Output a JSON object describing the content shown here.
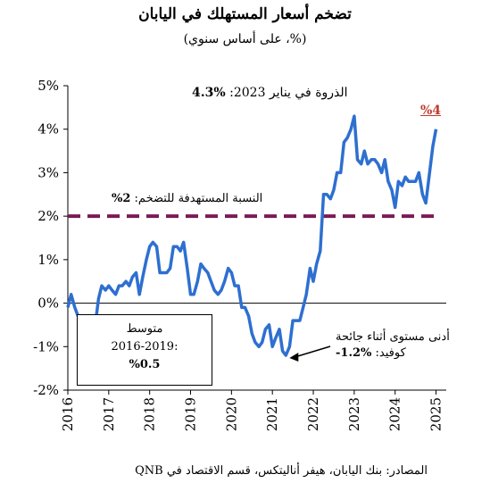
{
  "title": "تضخم أسعار المستهلك في اليابان",
  "subtitle": "(%، على أساس سنوي)",
  "source": "المصادر: بنك اليابان، هيفر أناليتكس، قسم الاقتصاد في QNB",
  "annotations": {
    "peak_text": "الذروة في يناير 2023:",
    "peak_value": "%4.3",
    "target_text": "النسبة المستهدفة للتضخم:",
    "target_value": "2%",
    "low_line1": "أدنى مستوى أثناء جائحة",
    "low_line2": "كوفيد:",
    "low_value": "-1.2%",
    "avg_line1": "متوسط",
    "avg_line2": "2016-2019:",
    "avg_value": "%0.5",
    "latest": "%4"
  },
  "colors": {
    "series": "#2e6fd0",
    "target": "#7a1a55",
    "latest_label": "#c0392b"
  },
  "chart_data": {
    "type": "line",
    "title": "تضخم أسعار المستهلك في اليابان",
    "subtitle": "(%، على أساس سنوي)",
    "xlabel": "",
    "ylabel": "",
    "x_ticks": [
      "2016",
      "2017",
      "2018",
      "2019",
      "2020",
      "2021",
      "2022",
      "2023",
      "2024",
      "2025"
    ],
    "y_ticks": [
      "-2%",
      "-1%",
      "0%",
      "1%",
      "2%",
      "3%",
      "4%",
      "5%"
    ],
    "ylim": [
      -2,
      5
    ],
    "grid": false,
    "target_line": 2,
    "series": [
      {
        "x": [
          2016.0,
          2016.08,
          2016.17,
          2016.25,
          2016.33,
          2016.42,
          2016.5,
          2016.58,
          2016.67,
          2016.75,
          2016.83,
          2016.92,
          2017.0,
          2017.08,
          2017.17,
          2017.25,
          2017.33,
          2017.42,
          2017.5,
          2017.58,
          2017.67,
          2017.75,
          2017.83,
          2017.92,
          2018.0,
          2018.08,
          2018.17,
          2018.25,
          2018.33,
          2018.42,
          2018.5,
          2018.58,
          2018.67,
          2018.75,
          2018.83,
          2018.92,
          2019.0,
          2019.08,
          2019.17,
          2019.25,
          2019.33,
          2019.42,
          2019.5,
          2019.58,
          2019.67,
          2019.75,
          2019.83,
          2019.92,
          2020.0,
          2020.08,
          2020.17,
          2020.25,
          2020.33,
          2020.42,
          2020.5,
          2020.58,
          2020.67,
          2020.75,
          2020.83,
          2020.92,
          2021.0,
          2021.08,
          2021.17,
          2021.25,
          2021.33,
          2021.42,
          2021.5,
          2021.58,
          2021.67,
          2021.75,
          2021.83,
          2021.92,
          2022.0,
          2022.08,
          2022.17,
          2022.25,
          2022.33,
          2022.42,
          2022.5,
          2022.58,
          2022.67,
          2022.75,
          2022.83,
          2022.92,
          2023.0,
          2023.08,
          2023.17,
          2023.25,
          2023.33,
          2023.42,
          2023.5,
          2023.58,
          2023.67,
          2023.75,
          2023.83,
          2023.92,
          2024.0,
          2024.08,
          2024.17,
          2024.25,
          2024.33,
          2024.42,
          2024.5,
          2024.58,
          2024.67,
          2024.75,
          2024.83,
          2024.92,
          2025.0
        ],
        "y": [
          -0.1,
          0.2,
          -0.1,
          -0.3,
          -0.5,
          -0.4,
          -0.4,
          -0.5,
          -0.5,
          0.1,
          0.4,
          0.3,
          0.4,
          0.3,
          0.2,
          0.4,
          0.4,
          0.5,
          0.4,
          0.6,
          0.7,
          0.2,
          0.6,
          1.0,
          1.3,
          1.4,
          1.3,
          0.7,
          0.7,
          0.7,
          0.8,
          1.3,
          1.3,
          1.2,
          1.4,
          0.8,
          0.2,
          0.2,
          0.5,
          0.9,
          0.8,
          0.7,
          0.5,
          0.3,
          0.2,
          0.3,
          0.5,
          0.8,
          0.7,
          0.4,
          0.4,
          -0.1,
          -0.1,
          -0.3,
          -0.7,
          -0.9,
          -1.0,
          -0.9,
          -0.6,
          -0.5,
          -1.0,
          -0.8,
          -0.6,
          -1.1,
          -1.2,
          -1.0,
          -0.4,
          -0.4,
          -0.4,
          -0.1,
          0.2,
          0.8,
          0.5,
          0.9,
          1.2,
          2.5,
          2.5,
          2.4,
          2.6,
          3.0,
          3.0,
          3.7,
          3.8,
          4.0,
          4.3,
          3.3,
          3.2,
          3.5,
          3.2,
          3.3,
          3.3,
          3.2,
          3.0,
          3.3,
          2.8,
          2.6,
          2.2,
          2.8,
          2.7,
          2.9,
          2.8,
          2.8,
          2.8,
          3.0,
          2.5,
          2.3,
          2.9,
          3.6,
          4.0
        ]
      }
    ]
  }
}
